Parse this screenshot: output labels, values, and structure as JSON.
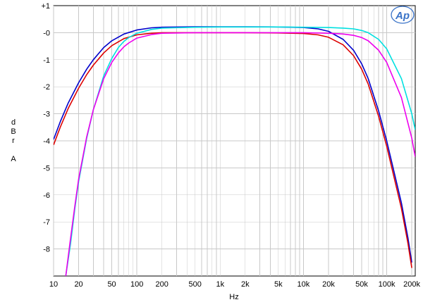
{
  "chart_data": {
    "type": "line",
    "xscale": "log",
    "xlim": [
      10,
      220000
    ],
    "ylim": [
      -9,
      1
    ],
    "grid": true,
    "xlabel": "Hz",
    "ylabel_lines": [
      "d",
      "B",
      "r",
      "",
      "A"
    ],
    "logo": "Ap",
    "x_ticks": [
      {
        "value": 10,
        "label": "10"
      },
      {
        "value": 20,
        "label": "20"
      },
      {
        "value": 50,
        "label": "50"
      },
      {
        "value": 100,
        "label": "100"
      },
      {
        "value": 200,
        "label": "200"
      },
      {
        "value": 500,
        "label": "500"
      },
      {
        "value": 1000,
        "label": "1k"
      },
      {
        "value": 2000,
        "label": "2k"
      },
      {
        "value": 5000,
        "label": "5k"
      },
      {
        "value": 10000,
        "label": "10k"
      },
      {
        "value": 20000,
        "label": "20k"
      },
      {
        "value": 50000,
        "label": "50k"
      },
      {
        "value": 100000,
        "label": "100k"
      },
      {
        "value": 200000,
        "label": "200k"
      }
    ],
    "y_ticks": [
      {
        "value": 1,
        "label": "+1"
      },
      {
        "value": 0,
        "label": "-0"
      },
      {
        "value": -1,
        "label": "-1"
      },
      {
        "value": -2,
        "label": "-2"
      },
      {
        "value": -3,
        "label": "-3"
      },
      {
        "value": -4,
        "label": "-4"
      },
      {
        "value": -5,
        "label": "-5"
      },
      {
        "value": -6,
        "label": "-6"
      },
      {
        "value": -7,
        "label": "-7"
      },
      {
        "value": -8,
        "label": "-8"
      }
    ],
    "series": [
      {
        "color": "#0000cc",
        "x": [
          10,
          12,
          15,
          20,
          25,
          30,
          40,
          50,
          70,
          100,
          150,
          200,
          500,
          1000,
          2000,
          5000,
          10000,
          15000,
          20000,
          30000,
          40000,
          50000,
          60000,
          80000,
          100000,
          150000,
          180000,
          200000
        ],
        "y": [
          -3.95,
          -3.3,
          -2.6,
          -1.85,
          -1.35,
          -1.0,
          -0.55,
          -0.3,
          -0.05,
          0.1,
          0.18,
          0.2,
          0.22,
          0.22,
          0.22,
          0.21,
          0.19,
          0.14,
          0.05,
          -0.25,
          -0.65,
          -1.15,
          -1.7,
          -2.9,
          -4.0,
          -6.3,
          -7.6,
          -8.5
        ]
      },
      {
        "color": "#dd0000",
        "x": [
          10,
          12,
          15,
          20,
          25,
          30,
          40,
          50,
          70,
          100,
          150,
          200,
          500,
          1000,
          2000,
          5000,
          10000,
          15000,
          20000,
          30000,
          40000,
          50000,
          60000,
          80000,
          100000,
          150000,
          180000,
          200000
        ],
        "y": [
          -4.15,
          -3.5,
          -2.8,
          -2.05,
          -1.55,
          -1.2,
          -0.75,
          -0.48,
          -0.22,
          -0.08,
          -0.02,
          0.0,
          0.0,
          0.0,
          0.0,
          -0.01,
          -0.03,
          -0.08,
          -0.17,
          -0.45,
          -0.85,
          -1.35,
          -1.9,
          -3.1,
          -4.2,
          -6.5,
          -7.8,
          -8.7
        ]
      },
      {
        "color": "#00e0e0",
        "x": [
          14,
          16,
          18,
          20,
          25,
          30,
          40,
          50,
          60,
          70,
          80,
          100,
          150,
          200,
          500,
          1000,
          2000,
          5000,
          10000,
          20000,
          30000,
          40000,
          50000,
          60000,
          80000,
          100000,
          150000,
          200000,
          220000
        ],
        "y": [
          -9.0,
          -7.8,
          -6.5,
          -5.5,
          -3.9,
          -2.85,
          -1.6,
          -0.95,
          -0.55,
          -0.32,
          -0.18,
          -0.02,
          0.12,
          0.17,
          0.2,
          0.21,
          0.21,
          0.21,
          0.2,
          0.19,
          0.17,
          0.14,
          0.08,
          0.0,
          -0.25,
          -0.6,
          -1.7,
          -3.0,
          -3.6
        ]
      },
      {
        "color": "#ee00ee",
        "x": [
          14,
          16,
          18,
          20,
          25,
          30,
          40,
          50,
          60,
          70,
          80,
          100,
          150,
          200,
          500,
          1000,
          2000,
          5000,
          10000,
          20000,
          30000,
          40000,
          50000,
          60000,
          80000,
          100000,
          150000,
          200000,
          220000
        ],
        "y": [
          -9.0,
          -7.6,
          -6.4,
          -5.4,
          -3.85,
          -2.85,
          -1.7,
          -1.1,
          -0.75,
          -0.52,
          -0.38,
          -0.2,
          -0.07,
          -0.02,
          0.0,
          0.0,
          0.0,
          0.0,
          0.0,
          -0.02,
          -0.05,
          -0.1,
          -0.18,
          -0.3,
          -0.65,
          -1.1,
          -2.4,
          -3.9,
          -4.6
        ]
      }
    ]
  }
}
